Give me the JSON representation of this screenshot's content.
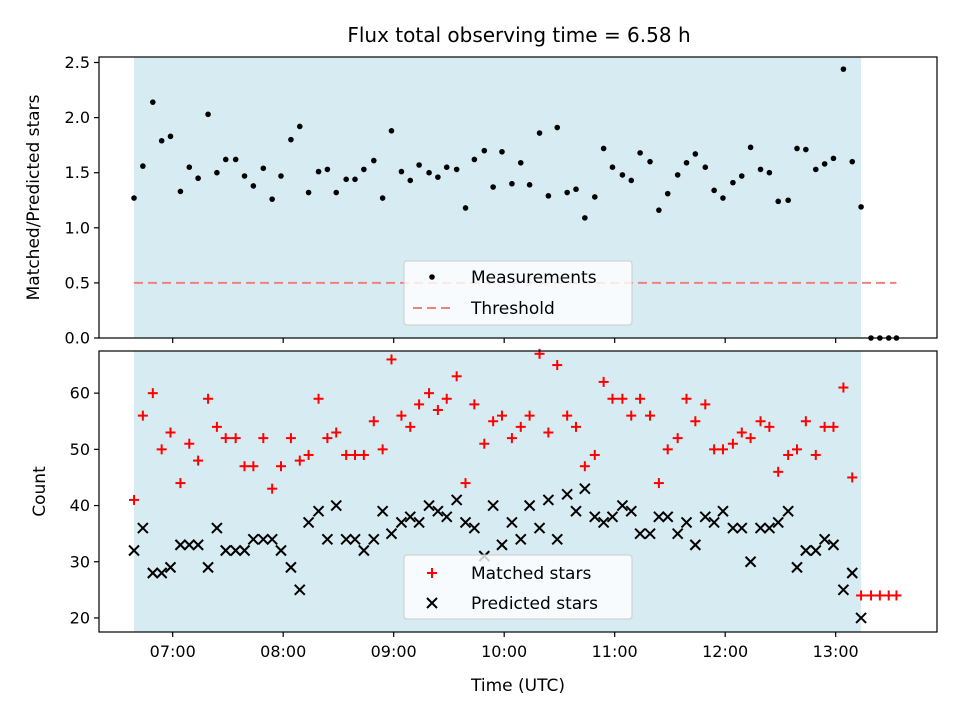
{
  "chart_data": {
    "title": "Flux total observing time = 6.58 h",
    "xlabel": "Time (UTC)",
    "x_unit": "hours UTC",
    "xlim": [
      6.333,
      13.917
    ],
    "x_ticks": [
      {
        "value": 7,
        "label": "07:00"
      },
      {
        "value": 8,
        "label": "08:00"
      },
      {
        "value": 9,
        "label": "09:00"
      },
      {
        "value": 10,
        "label": "10:00"
      },
      {
        "value": 11,
        "label": "11:00"
      },
      {
        "value": 12,
        "label": "12:00"
      },
      {
        "value": 13,
        "label": "13:00"
      }
    ],
    "observing_window": [
      6.65,
      13.23
    ],
    "top": {
      "type": "scatter",
      "ylabel": "Matched/Predicted stars",
      "ylim": [
        0,
        2.55
      ],
      "y_ticks": [
        {
          "value": 0.0,
          "label": "0.0"
        },
        {
          "value": 0.5,
          "label": "0.5"
        },
        {
          "value": 1.0,
          "label": "1.0"
        },
        {
          "value": 1.5,
          "label": "1.5"
        },
        {
          "value": 2.0,
          "label": "2.0"
        },
        {
          "value": 2.5,
          "label": "2.5"
        }
      ],
      "threshold": {
        "value": 0.5,
        "x_range": [
          6.65,
          13.55
        ],
        "color": "#f08080"
      },
      "legend": [
        {
          "label": "Measurements",
          "marker": "dot"
        },
        {
          "label": "Threshold",
          "marker": "dash"
        }
      ],
      "measurements": {
        "x": [
          6.65,
          6.73,
          6.82,
          6.9,
          6.98,
          7.07,
          7.15,
          7.23,
          7.32,
          7.4,
          7.48,
          7.57,
          7.65,
          7.73,
          7.82,
          7.9,
          7.98,
          8.07,
          8.15,
          8.23,
          8.32,
          8.4,
          8.48,
          8.57,
          8.65,
          8.73,
          8.82,
          8.9,
          8.98,
          9.07,
          9.15,
          9.23,
          9.32,
          9.4,
          9.48,
          9.57,
          9.65,
          9.73,
          9.82,
          9.9,
          9.98,
          10.07,
          10.15,
          10.23,
          10.32,
          10.4,
          10.48,
          10.57,
          10.65,
          10.73,
          10.82,
          10.9,
          10.98,
          11.07,
          11.15,
          11.23,
          11.32,
          11.4,
          11.48,
          11.57,
          11.65,
          11.73,
          11.82,
          11.9,
          11.98,
          12.07,
          12.15,
          12.23,
          12.32,
          12.4,
          12.48,
          12.57,
          12.65,
          12.73,
          12.82,
          12.9,
          12.98,
          13.07,
          13.15,
          13.23,
          13.32,
          13.4,
          13.48,
          13.55
        ],
        "y": [
          1.27,
          1.56,
          2.14,
          1.79,
          1.83,
          1.33,
          1.55,
          1.45,
          2.03,
          1.5,
          1.62,
          1.62,
          1.47,
          1.38,
          1.54,
          1.26,
          1.47,
          1.8,
          1.92,
          1.32,
          1.51,
          1.53,
          1.32,
          1.44,
          1.44,
          1.53,
          1.61,
          1.27,
          1.88,
          1.51,
          1.43,
          1.57,
          1.5,
          1.46,
          1.55,
          1.53,
          1.18,
          1.62,
          1.7,
          1.37,
          1.69,
          1.4,
          1.59,
          1.39,
          1.86,
          1.29,
          1.91,
          1.32,
          1.35,
          1.09,
          1.28,
          1.72,
          1.55,
          1.48,
          1.43,
          1.68,
          1.6,
          1.16,
          1.31,
          1.48,
          1.59,
          1.67,
          1.55,
          1.34,
          1.27,
          1.41,
          1.47,
          1.73,
          1.53,
          1.5,
          1.24,
          1.25,
          1.72,
          1.71,
          1.53,
          1.58,
          1.63,
          2.44,
          1.6,
          1.19,
          0.0,
          0.0,
          0.0,
          0.0
        ]
      }
    },
    "bottom": {
      "type": "scatter",
      "ylabel": "Count",
      "ylim": [
        17.5,
        67.5
      ],
      "y_ticks": [
        {
          "value": 20,
          "label": "20"
        },
        {
          "value": 30,
          "label": "30"
        },
        {
          "value": 40,
          "label": "40"
        },
        {
          "value": 50,
          "label": "50"
        },
        {
          "value": 60,
          "label": "60"
        }
      ],
      "legend": [
        {
          "label": "Matched stars",
          "marker": "plus"
        },
        {
          "label": "Predicted stars",
          "marker": "x"
        }
      ],
      "matched": {
        "color": "#ff0000",
        "x": [
          6.65,
          6.73,
          6.82,
          6.9,
          6.98,
          7.07,
          7.15,
          7.23,
          7.32,
          7.4,
          7.48,
          7.57,
          7.65,
          7.73,
          7.82,
          7.9,
          7.98,
          8.07,
          8.15,
          8.23,
          8.32,
          8.4,
          8.48,
          8.57,
          8.65,
          8.73,
          8.82,
          8.9,
          8.98,
          9.07,
          9.15,
          9.23,
          9.32,
          9.4,
          9.48,
          9.57,
          9.65,
          9.73,
          9.82,
          9.9,
          9.98,
          10.07,
          10.15,
          10.23,
          10.32,
          10.4,
          10.48,
          10.57,
          10.65,
          10.73,
          10.82,
          10.9,
          10.98,
          11.07,
          11.15,
          11.23,
          11.32,
          11.4,
          11.48,
          11.57,
          11.65,
          11.73,
          11.82,
          11.9,
          11.98,
          12.07,
          12.15,
          12.23,
          12.32,
          12.4,
          12.48,
          12.57,
          12.65,
          12.73,
          12.82,
          12.9,
          12.98,
          13.07,
          13.15,
          13.23,
          13.32,
          13.4,
          13.48,
          13.55
        ],
        "y": [
          41,
          56,
          60,
          50,
          53,
          44,
          51,
          48,
          59,
          54,
          52,
          52,
          47,
          47,
          52,
          43,
          47,
          52,
          48,
          49,
          59,
          52,
          53,
          49,
          49,
          49,
          55,
          50,
          66,
          56,
          54,
          58,
          60,
          57,
          59,
          63,
          44,
          58,
          51,
          55,
          56,
          52,
          54,
          56,
          67,
          53,
          65,
          56,
          54,
          47,
          49,
          62,
          59,
          59,
          56,
          59,
          56,
          44,
          50,
          52,
          59,
          55,
          58,
          50,
          50,
          51,
          53,
          52,
          55,
          54,
          46,
          49,
          50,
          55,
          49,
          54,
          54,
          61,
          45,
          24,
          24,
          24,
          24,
          24
        ]
      },
      "predicted": {
        "color": "#000000",
        "x": [
          6.65,
          6.73,
          6.82,
          6.9,
          6.98,
          7.07,
          7.15,
          7.23,
          7.32,
          7.4,
          7.48,
          7.57,
          7.65,
          7.73,
          7.82,
          7.9,
          7.98,
          8.07,
          8.15,
          8.23,
          8.32,
          8.4,
          8.48,
          8.57,
          8.65,
          8.73,
          8.82,
          8.9,
          8.98,
          9.07,
          9.15,
          9.23,
          9.32,
          9.4,
          9.48,
          9.57,
          9.65,
          9.73,
          9.82,
          9.9,
          9.98,
          10.07,
          10.15,
          10.23,
          10.32,
          10.4,
          10.48,
          10.57,
          10.65,
          10.73,
          10.82,
          10.9,
          10.98,
          11.07,
          11.15,
          11.23,
          11.32,
          11.4,
          11.48,
          11.57,
          11.65,
          11.73,
          11.82,
          11.9,
          11.98,
          12.07,
          12.15,
          12.23,
          12.32,
          12.4,
          12.48,
          12.57,
          12.65,
          12.73,
          12.82,
          12.9,
          12.98,
          13.07,
          13.15,
          13.23
        ],
        "y": [
          32,
          36,
          28,
          28,
          29,
          33,
          33,
          33,
          29,
          36,
          32,
          32,
          32,
          34,
          34,
          34,
          32,
          29,
          25,
          37,
          39,
          34,
          40,
          34,
          34,
          32,
          34,
          39,
          35,
          37,
          38,
          37,
          40,
          39,
          38,
          41,
          37,
          36,
          31,
          40,
          33,
          37,
          34,
          40,
          36,
          41,
          34,
          42,
          39,
          43,
          38,
          37,
          38,
          40,
          39,
          35,
          35,
          38,
          38,
          35,
          37,
          33,
          38,
          37,
          39,
          36,
          36,
          30,
          36,
          36,
          37,
          39,
          29,
          32,
          32,
          34,
          33,
          25,
          28,
          20
        ]
      }
    }
  }
}
